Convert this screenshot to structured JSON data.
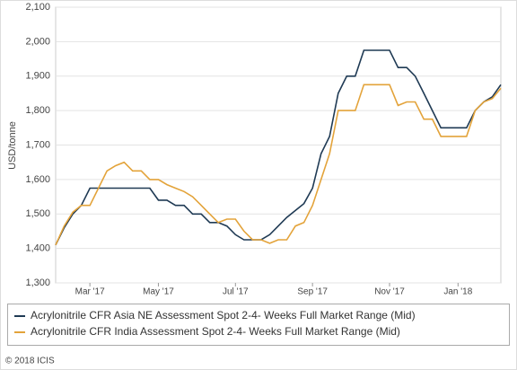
{
  "chart_data": {
    "type": "line",
    "y_label": "USD/tonne",
    "footer": "© 2018 ICIS",
    "categories": [
      null,
      null,
      null,
      null,
      "Mar '17",
      null,
      null,
      null,
      null,
      null,
      null,
      null,
      "May '17",
      null,
      null,
      null,
      null,
      null,
      null,
      null,
      null,
      "Jul '17",
      null,
      null,
      null,
      null,
      null,
      null,
      null,
      null,
      "Sep '17",
      null,
      null,
      null,
      null,
      null,
      null,
      null,
      null,
      "Nov '17",
      null,
      null,
      null,
      null,
      null,
      null,
      null,
      "Jan '18",
      null,
      null,
      null,
      null,
      null
    ],
    "series": [
      {
        "name": "Acrylonitrile CFR Asia NE Assessment Spot 2-4- Weeks Full Market Range (Mid)",
        "color": "#1f3a54",
        "values": [
          1410,
          1460,
          1500,
          1525,
          1575,
          1575,
          1575,
          1575,
          1575,
          1575,
          1575,
          1575,
          1540,
          1540,
          1525,
          1525,
          1500,
          1500,
          1475,
          1475,
          1465,
          1440,
          1425,
          1425,
          1425,
          1440,
          1465,
          1490,
          1510,
          1530,
          1575,
          1675,
          1725,
          1850,
          1900,
          1900,
          1975,
          1975,
          1975,
          1975,
          1925,
          1925,
          1900,
          1850,
          1800,
          1750,
          1750,
          1750,
          1750,
          1800,
          1825,
          1840,
          1875
        ]
      },
      {
        "name": "Acrylonitrile CFR India Assessment Spot 2-4- Weeks Full Market Range (Mid)",
        "color": "#e3a33a",
        "values": [
          1410,
          1465,
          1505,
          1525,
          1525,
          1575,
          1625,
          1640,
          1650,
          1625,
          1625,
          1600,
          1600,
          1585,
          1575,
          1565,
          1550,
          1525,
          1500,
          1475,
          1485,
          1485,
          1450,
          1425,
          1425,
          1415,
          1425,
          1425,
          1465,
          1475,
          1525,
          1600,
          1675,
          1800,
          1800,
          1800,
          1875,
          1875,
          1875,
          1875,
          1815,
          1825,
          1825,
          1775,
          1775,
          1725,
          1725,
          1725,
          1725,
          1800,
          1825,
          1835,
          1865
        ]
      }
    ],
    "ylim": [
      1300,
      2100
    ],
    "yticks": [
      {
        "value": 1300,
        "label": "1,300"
      },
      {
        "value": 1400,
        "label": "1,400"
      },
      {
        "value": 1500,
        "label": "1,500"
      },
      {
        "value": 1600,
        "label": "1,600"
      },
      {
        "value": 1700,
        "label": "1,700"
      },
      {
        "value": 1800,
        "label": "1,800"
      },
      {
        "value": 1900,
        "label": "1,900"
      },
      {
        "value": 2000,
        "label": "2,000"
      },
      {
        "value": 2100,
        "label": "2,100"
      }
    ],
    "grid": true
  }
}
